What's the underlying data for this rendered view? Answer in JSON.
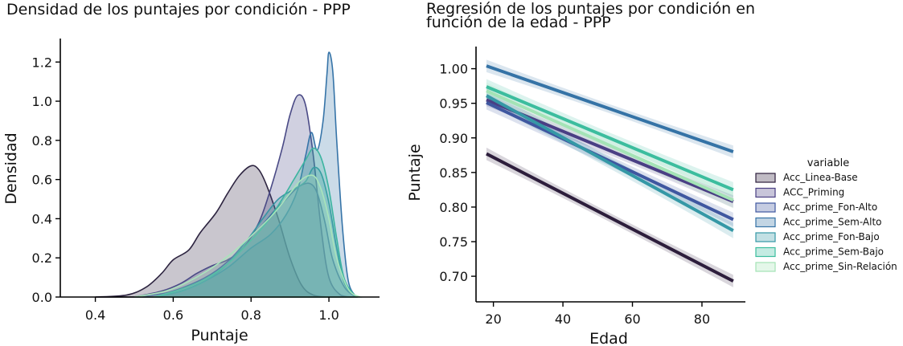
{
  "chart_data": [
    {
      "type": "area",
      "title": "Densidad de los puntajes por condición - PPP",
      "xlabel": "Puntaje",
      "ylabel": "Densidad",
      "xlim": [
        0.31,
        1.13
      ],
      "ylim": [
        0,
        1.32
      ],
      "xticks": [
        0.4,
        0.6,
        0.8,
        1.0
      ],
      "xtick_labels": [
        "0.4",
        "0.6",
        "0.8",
        "1.0"
      ],
      "yticks": [
        0.0,
        0.2,
        0.4,
        0.6,
        0.8,
        1.0,
        1.2
      ],
      "ytick_labels": [
        "0.0",
        "0.2",
        "0.4",
        "0.6",
        "0.8",
        "1.0",
        "1.2"
      ],
      "grid": false,
      "series": [
        {
          "color": "#2d2440",
          "points": [
            [
              0.4,
              0
            ],
            [
              0.48,
              0.01
            ],
            [
              0.53,
              0.05
            ],
            [
              0.57,
              0.12
            ],
            [
              0.6,
              0.19
            ],
            [
              0.64,
              0.24
            ],
            [
              0.67,
              0.33
            ],
            [
              0.71,
              0.43
            ],
            [
              0.74,
              0.53
            ],
            [
              0.77,
              0.62
            ],
            [
              0.8,
              0.67
            ],
            [
              0.82,
              0.65
            ],
            [
              0.84,
              0.57
            ],
            [
              0.87,
              0.4
            ],
            [
              0.9,
              0.2
            ],
            [
              0.93,
              0.06
            ],
            [
              0.96,
              0.01
            ],
            [
              1.0,
              0
            ]
          ]
        },
        {
          "color": "#4a4a86",
          "points": [
            [
              0.5,
              0
            ],
            [
              0.57,
              0.03
            ],
            [
              0.62,
              0.07
            ],
            [
              0.66,
              0.12
            ],
            [
              0.7,
              0.16
            ],
            [
              0.74,
              0.19
            ],
            [
              0.78,
              0.25
            ],
            [
              0.82,
              0.38
            ],
            [
              0.85,
              0.55
            ],
            [
              0.88,
              0.76
            ],
            [
              0.9,
              0.93
            ],
            [
              0.92,
              1.03
            ],
            [
              0.94,
              0.98
            ],
            [
              0.96,
              0.72
            ],
            [
              0.98,
              0.35
            ],
            [
              1.0,
              0.1
            ],
            [
              1.03,
              0.01
            ],
            [
              1.06,
              0
            ]
          ]
        },
        {
          "color": "#3e5a9e",
          "points": [
            [
              0.5,
              0
            ],
            [
              0.58,
              0.02
            ],
            [
              0.64,
              0.06
            ],
            [
              0.7,
              0.12
            ],
            [
              0.75,
              0.2
            ],
            [
              0.79,
              0.29
            ],
            [
              0.83,
              0.37
            ],
            [
              0.86,
              0.44
            ],
            [
              0.89,
              0.5
            ],
            [
              0.92,
              0.56
            ],
            [
              0.95,
              0.58
            ],
            [
              0.97,
              0.53
            ],
            [
              0.99,
              0.38
            ],
            [
              1.01,
              0.19
            ],
            [
              1.04,
              0.05
            ],
            [
              1.07,
              0
            ]
          ]
        },
        {
          "color": "#3674a8",
          "points": [
            [
              0.55,
              0
            ],
            [
              0.62,
              0.03
            ],
            [
              0.68,
              0.08
            ],
            [
              0.74,
              0.15
            ],
            [
              0.8,
              0.25
            ],
            [
              0.85,
              0.32
            ],
            [
              0.89,
              0.42
            ],
            [
              0.92,
              0.55
            ],
            [
              0.94,
              0.72
            ],
            [
              0.955,
              0.84
            ],
            [
              0.97,
              0.75
            ],
            [
              0.985,
              0.9
            ],
            [
              0.995,
              1.14
            ],
            [
              1.0,
              1.25
            ],
            [
              1.01,
              1.15
            ],
            [
              1.02,
              0.8
            ],
            [
              1.035,
              0.35
            ],
            [
              1.05,
              0.08
            ],
            [
              1.07,
              0
            ]
          ]
        },
        {
          "color": "#3795a4",
          "points": [
            [
              0.55,
              0
            ],
            [
              0.62,
              0.03
            ],
            [
              0.68,
              0.08
            ],
            [
              0.74,
              0.17
            ],
            [
              0.79,
              0.29
            ],
            [
              0.83,
              0.4
            ],
            [
              0.87,
              0.5
            ],
            [
              0.91,
              0.55
            ],
            [
              0.94,
              0.59
            ],
            [
              0.96,
              0.66
            ],
            [
              0.98,
              0.63
            ],
            [
              1.0,
              0.48
            ],
            [
              1.02,
              0.25
            ],
            [
              1.04,
              0.07
            ],
            [
              1.07,
              0
            ]
          ]
        },
        {
          "color": "#3cb4a0",
          "points": [
            [
              0.55,
              0
            ],
            [
              0.62,
              0.04
            ],
            [
              0.68,
              0.09
            ],
            [
              0.74,
              0.17
            ],
            [
              0.79,
              0.27
            ],
            [
              0.84,
              0.38
            ],
            [
              0.88,
              0.5
            ],
            [
              0.91,
              0.6
            ],
            [
              0.94,
              0.7
            ],
            [
              0.96,
              0.76
            ],
            [
              0.98,
              0.71
            ],
            [
              1.0,
              0.55
            ],
            [
              1.02,
              0.3
            ],
            [
              1.04,
              0.09
            ],
            [
              1.07,
              0
            ]
          ]
        },
        {
          "color": "#a9e4bb",
          "points": [
            [
              0.5,
              0
            ],
            [
              0.58,
              0.03
            ],
            [
              0.64,
              0.08
            ],
            [
              0.7,
              0.15
            ],
            [
              0.76,
              0.24
            ],
            [
              0.81,
              0.33
            ],
            [
              0.86,
              0.43
            ],
            [
              0.9,
              0.53
            ],
            [
              0.93,
              0.6
            ],
            [
              0.96,
              0.62
            ],
            [
              0.98,
              0.55
            ],
            [
              1.0,
              0.4
            ],
            [
              1.02,
              0.2
            ],
            [
              1.05,
              0.04
            ],
            [
              1.08,
              0
            ]
          ]
        }
      ]
    },
    {
      "type": "line",
      "title": "Regresión de los puntajes por condición en función de la edad - PPP",
      "title_lines": [
        "Regresión de los puntajes por condición en",
        "función de la edad - PPP"
      ],
      "xlabel": "Edad",
      "ylabel": "Puntaje",
      "xlim": [
        15,
        92.5
      ],
      "ylim": [
        0.663,
        1.032
      ],
      "xticks": [
        20,
        40,
        60,
        80
      ],
      "xtick_labels": [
        "20",
        "40",
        "60",
        "80"
      ],
      "yticks": [
        0.7,
        0.75,
        0.8,
        0.85,
        0.9,
        0.95,
        1.0
      ],
      "ytick_labels": [
        "0.70",
        "0.75",
        "0.80",
        "0.85",
        "0.90",
        "0.95",
        "1.00"
      ],
      "grid": false,
      "x_range": [
        18,
        89
      ],
      "legend_title": "variable",
      "legend_position": "center-right",
      "series": [
        {
          "name": "Acc_Linea-Base",
          "color": "#2d1e3c",
          "y_start": 0.877,
          "y_end": 0.693,
          "ci": 0.009
        },
        {
          "name": "ACC_Priming",
          "color": "#4a3f84",
          "y_start": 0.955,
          "y_end": 0.808,
          "ci": 0.009
        },
        {
          "name": "Acc_prime_Fon-Alto",
          "color": "#3f57a0",
          "y_start": 0.951,
          "y_end": 0.782,
          "ci": 0.01
        },
        {
          "name": "Acc_prime_Sem-Alto",
          "color": "#3573a6",
          "y_start": 1.004,
          "y_end": 0.88,
          "ci": 0.009
        },
        {
          "name": "Acc_prime_Fon-Bajo",
          "color": "#3598a6",
          "y_start": 0.961,
          "y_end": 0.766,
          "ci": 0.011
        },
        {
          "name": "Acc_prime_Sem-Bajo",
          "color": "#3cbd9e",
          "y_start": 0.974,
          "y_end": 0.825,
          "ci": 0.011
        },
        {
          "name": "Acc_prime_Sin-Relación",
          "color": "#a4e3b6",
          "y_start": 0.968,
          "y_end": 0.81,
          "ci": 0.012
        }
      ]
    }
  ]
}
